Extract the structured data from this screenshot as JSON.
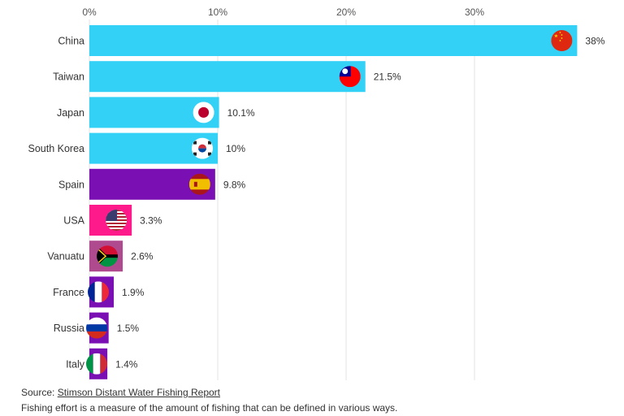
{
  "chart_data": {
    "type": "bar",
    "orientation": "horizontal",
    "categories": [
      "China",
      "Taiwan",
      "Japan",
      "South Korea",
      "Spain",
      "USA",
      "Vanuatu",
      "France",
      "Russia",
      "Italy"
    ],
    "values": [
      38,
      21.5,
      10.1,
      10,
      9.8,
      3.3,
      2.6,
      1.9,
      1.5,
      1.4
    ],
    "value_labels": [
      "38%",
      "21.5%",
      "10.1%",
      "10%",
      "9.8%",
      "3.3%",
      "2.6%",
      "1.9%",
      "1.5%",
      "1.4%"
    ],
    "bar_colors": [
      "#33d1f5",
      "#33d1f5",
      "#33d1f5",
      "#33d1f5",
      "#7a0fb3",
      "#ff1a8c",
      "#b04a8f",
      "#7a0fb3",
      "#7a0fb3",
      "#7a0fb3"
    ],
    "flag_icons": [
      "china-flag-icon",
      "taiwan-flag-icon",
      "japan-flag-icon",
      "south-korea-flag-icon",
      "spain-flag-icon",
      "usa-flag-icon",
      "vanuatu-flag-icon",
      "france-flag-icon",
      "russia-flag-icon",
      "italy-flag-icon"
    ],
    "xlim": [
      0,
      38
    ],
    "x_ticks": [
      0,
      10,
      20,
      30
    ],
    "x_tick_labels": [
      "0%",
      "10%",
      "20%",
      "30%"
    ],
    "axis_position": "top",
    "grid": true,
    "title": "",
    "xlabel": "",
    "ylabel": ""
  },
  "footer": {
    "source_prefix": "Source: ",
    "source_link": "Stimson Distant Water Fishing Report",
    "note": "Fishing effort is a measure of the amount of fishing that can be defined in various ways."
  }
}
